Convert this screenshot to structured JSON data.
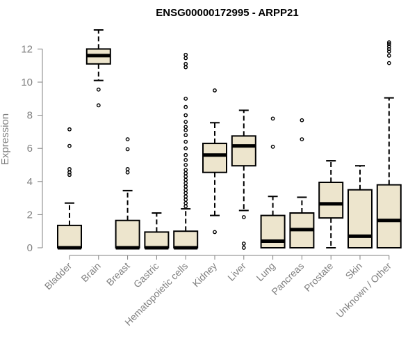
{
  "chart_data": {
    "type": "boxplot",
    "title": "ENSG00000172995 - ARPP21",
    "xlabel": "",
    "ylabel": "Expression",
    "ylim": [
      0,
      13.2
    ],
    "yticks": [
      0,
      2,
      4,
      6,
      8,
      10,
      12
    ],
    "colors": {
      "box_fill": "#ede5cd",
      "stroke": "#000000",
      "axis_text": "#808080"
    },
    "categories": [
      "Bladder",
      "Brain",
      "Breast",
      "Gastric",
      "Hematopoietic cells",
      "Kidney",
      "Liver",
      "Lung",
      "Pancreas",
      "Prostate",
      "Skin",
      "Unknown / Other"
    ],
    "boxes": [
      {
        "category": "Bladder",
        "whisker_low": 0,
        "q1": 0,
        "median": 0,
        "q3": 1.35,
        "whisker_high": 2.7,
        "outliers": [
          4.4,
          4.55,
          4.75,
          6.15,
          7.15
        ]
      },
      {
        "category": "Brain",
        "whisker_low": 10.1,
        "q1": 11.1,
        "median": 11.6,
        "q3": 12.0,
        "whisker_high": 13.15,
        "outliers": [
          9.55,
          8.6
        ]
      },
      {
        "category": "Breast",
        "whisker_low": 0,
        "q1": 0,
        "median": 0,
        "q3": 1.65,
        "whisker_high": 3.45,
        "outliers": [
          4.55,
          4.75,
          5.95,
          6.55
        ]
      },
      {
        "category": "Gastric",
        "whisker_low": 0,
        "q1": 0,
        "median": 0,
        "q3": 0.95,
        "whisker_high": 2.1,
        "outliers": []
      },
      {
        "category": "Hematopoietic cells",
        "whisker_low": 0,
        "q1": 0,
        "median": 0,
        "q3": 1.0,
        "whisker_high": 2.35,
        "outliers": [
          2.5,
          2.7,
          2.9,
          3.1,
          3.3,
          3.5,
          3.7,
          3.9,
          4.1,
          4.3,
          4.5,
          4.7,
          5.0,
          5.3,
          5.6,
          6.0,
          6.4,
          6.8,
          7.1,
          7.3,
          7.6,
          8.0,
          8.5,
          9.0,
          10.9,
          11.1,
          11.45,
          11.65
        ]
      },
      {
        "category": "Kidney",
        "whisker_low": 1.95,
        "q1": 4.55,
        "median": 5.6,
        "q3": 6.3,
        "whisker_high": 7.55,
        "outliers": [
          0.95,
          9.5
        ]
      },
      {
        "category": "Liver",
        "whisker_low": 2.25,
        "q1": 4.95,
        "median": 6.15,
        "q3": 6.75,
        "whisker_high": 8.3,
        "outliers": [
          1.85,
          0.25,
          0.0
        ]
      },
      {
        "category": "Lung",
        "whisker_low": 0,
        "q1": 0,
        "median": 0.4,
        "q3": 1.95,
        "whisker_high": 3.1,
        "outliers": [
          6.1,
          7.8
        ]
      },
      {
        "category": "Pancreas",
        "whisker_low": 0,
        "q1": 0,
        "median": 1.1,
        "q3": 2.1,
        "whisker_high": 3.05,
        "outliers": [
          6.55,
          7.7
        ]
      },
      {
        "category": "Prostate",
        "whisker_low": 0,
        "q1": 1.8,
        "median": 2.65,
        "q3": 3.95,
        "whisker_high": 5.25,
        "outliers": []
      },
      {
        "category": "Skin",
        "whisker_low": 0,
        "q1": 0,
        "median": 0.7,
        "q3": 3.5,
        "whisker_high": 4.95,
        "outliers": []
      },
      {
        "category": "Unknown / Other",
        "whisker_low": 0,
        "q1": 0,
        "median": 1.65,
        "q3": 3.8,
        "whisker_high": 9.05,
        "outliers": [
          11.15,
          11.6,
          11.85,
          12.0,
          12.15,
          12.3,
          12.4
        ]
      }
    ]
  }
}
